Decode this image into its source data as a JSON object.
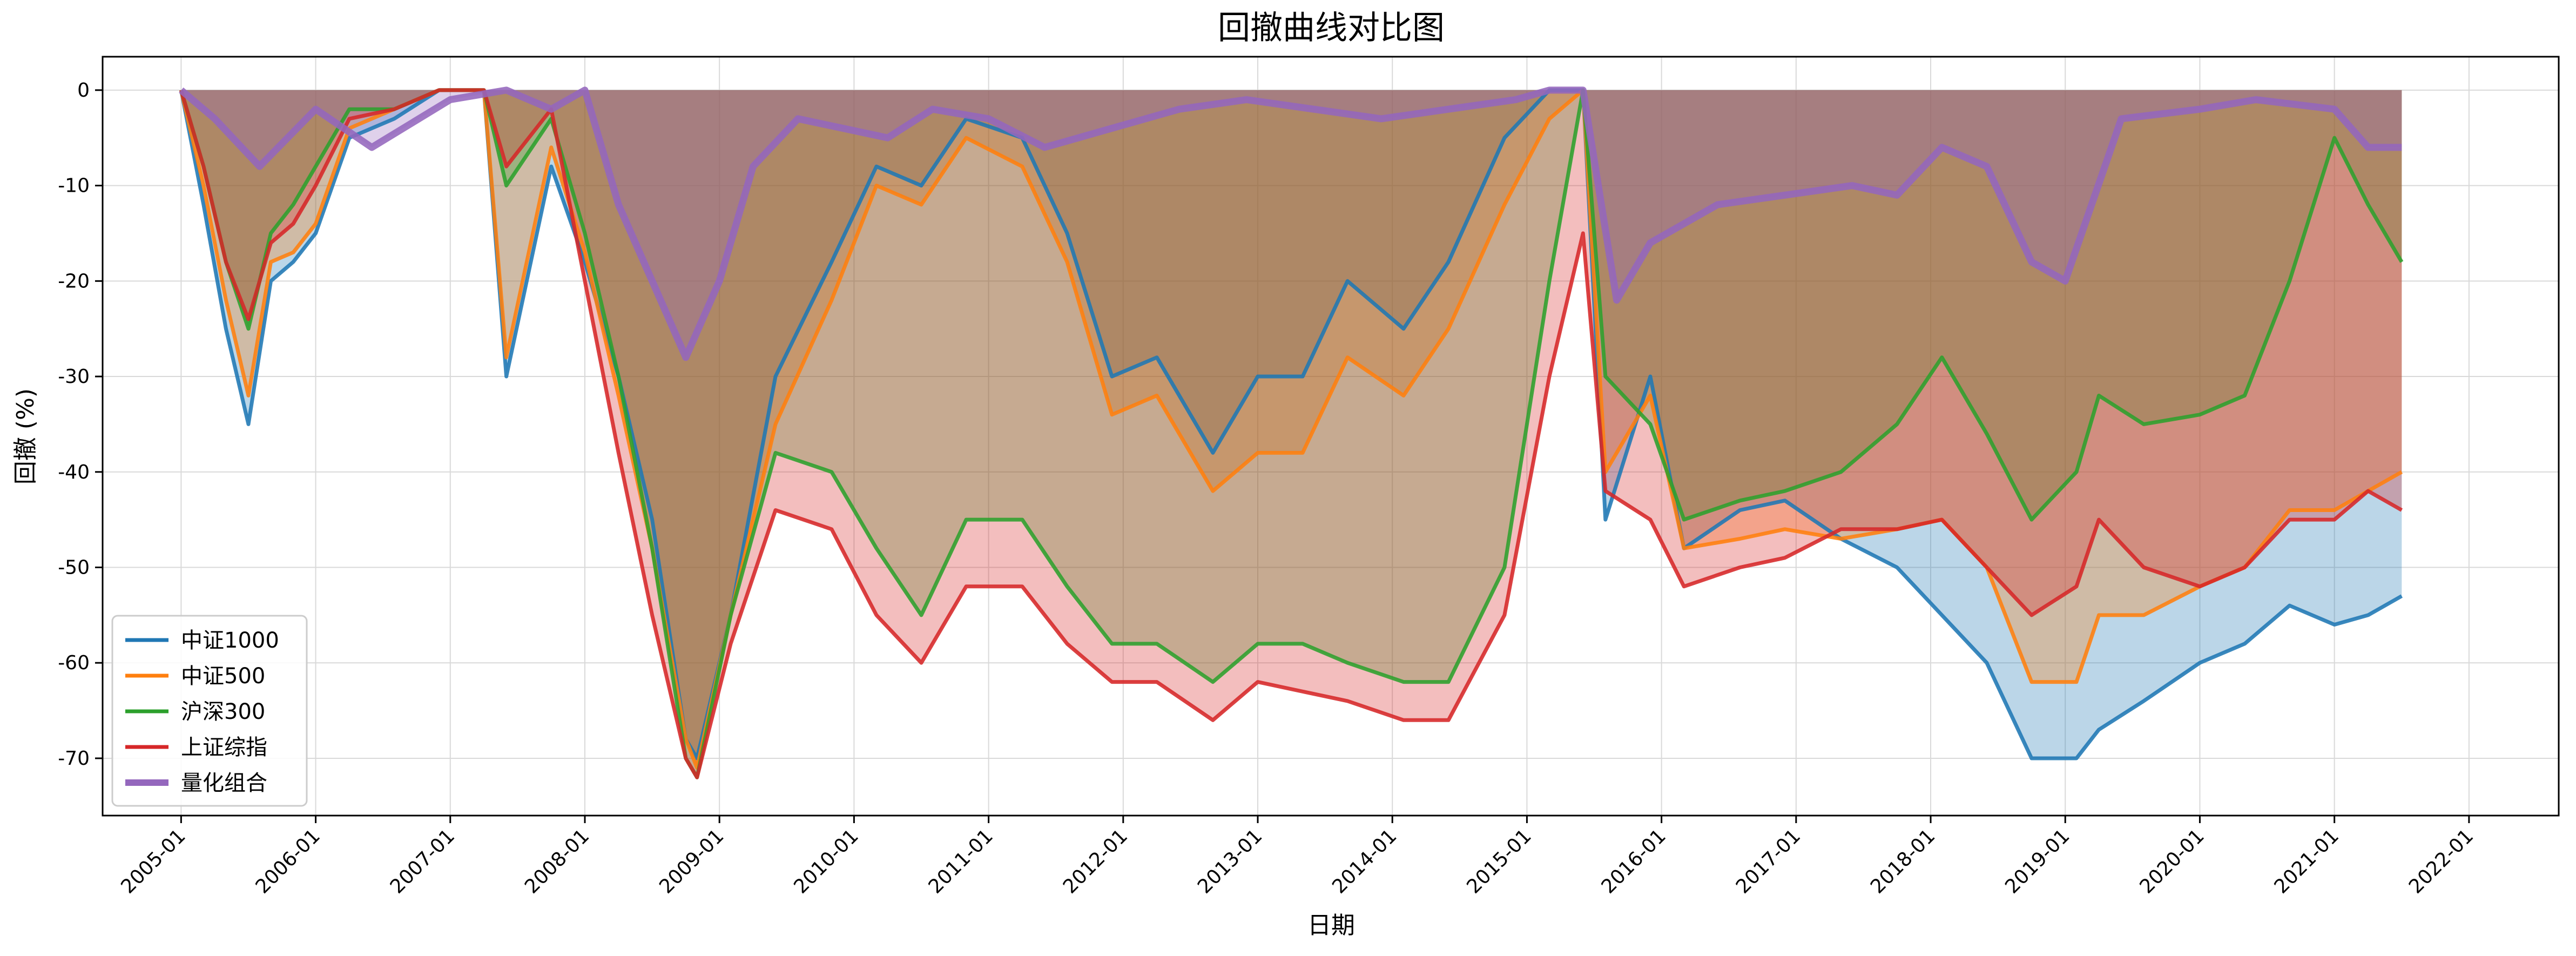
{
  "chart_data": {
    "type": "line",
    "title": "回撤曲线对比图",
    "xlabel": "日期",
    "ylabel": "回撤 (%)",
    "xlim": [
      "2004-06",
      "2022-09"
    ],
    "ylim": [
      -76,
      3.5
    ],
    "y_ticks": [
      0,
      -10,
      -20,
      -30,
      -40,
      -50,
      -60,
      -70
    ],
    "y_tick_labels": [
      "0",
      "-10",
      "-20",
      "-30",
      "-40",
      "-50",
      "-60",
      "-70"
    ],
    "x_ticks": [
      "2005-01",
      "2006-01",
      "2007-01",
      "2008-01",
      "2009-01",
      "2010-01",
      "2011-01",
      "2012-01",
      "2013-01",
      "2014-01",
      "2015-01",
      "2016-01",
      "2017-01",
      "2018-01",
      "2019-01",
      "2020-01",
      "2021-01",
      "2022-01"
    ],
    "grid": true,
    "legend_position": "lower-left",
    "series": [
      {
        "name": "中证1000",
        "color": "#1f77b4",
        "x": [
          "2005-01",
          "2005-03",
          "2005-05",
          "2005-07",
          "2005-09",
          "2005-11",
          "2006-01",
          "2006-04",
          "2006-08",
          "2006-12",
          "2007-04",
          "2007-06",
          "2007-10",
          "2008-01",
          "2008-04",
          "2008-07",
          "2008-10",
          "2008-11",
          "2009-02",
          "2009-06",
          "2009-11",
          "2010-03",
          "2010-07",
          "2010-11",
          "2011-04",
          "2011-08",
          "2011-12",
          "2012-04",
          "2012-09",
          "2013-01",
          "2013-05",
          "2013-09",
          "2014-02",
          "2014-06",
          "2014-11",
          "2015-03",
          "2015-06",
          "2015-08",
          "2015-12",
          "2016-03",
          "2016-08",
          "2016-12",
          "2017-05",
          "2017-10",
          "2018-02",
          "2018-06",
          "2018-10",
          "2019-02",
          "2019-04",
          "2019-08",
          "2020-01",
          "2020-05",
          "2020-09",
          "2021-01",
          "2021-04",
          "2021-07"
        ],
        "y": [
          0,
          -12,
          -25,
          -35,
          -20,
          -18,
          -15,
          -5,
          -3,
          0,
          0,
          -30,
          -8,
          -18,
          -30,
          -45,
          -68,
          -70,
          -55,
          -30,
          -18,
          -8,
          -10,
          -3,
          -5,
          -15,
          -30,
          -28,
          -38,
          -30,
          -30,
          -20,
          -25,
          -18,
          -5,
          0,
          0,
          -45,
          -30,
          -48,
          -44,
          -43,
          -47,
          -50,
          -55,
          -60,
          -70,
          -70,
          -67,
          -64,
          -60,
          -58,
          -54,
          -56,
          -55,
          -53
        ]
      },
      {
        "name": "中证500",
        "color": "#ff7f0e",
        "x": [
          "2005-01",
          "2005-03",
          "2005-05",
          "2005-07",
          "2005-09",
          "2005-11",
          "2006-01",
          "2006-04",
          "2006-08",
          "2006-12",
          "2007-04",
          "2007-06",
          "2007-10",
          "2008-01",
          "2008-04",
          "2008-07",
          "2008-10",
          "2008-11",
          "2009-02",
          "2009-06",
          "2009-11",
          "2010-03",
          "2010-07",
          "2010-11",
          "2011-04",
          "2011-08",
          "2011-12",
          "2012-04",
          "2012-09",
          "2013-01",
          "2013-05",
          "2013-09",
          "2014-02",
          "2014-06",
          "2014-11",
          "2015-03",
          "2015-06",
          "2015-08",
          "2015-12",
          "2016-03",
          "2016-08",
          "2016-12",
          "2017-05",
          "2017-10",
          "2018-02",
          "2018-06",
          "2018-10",
          "2019-02",
          "2019-04",
          "2019-08",
          "2020-01",
          "2020-05",
          "2020-09",
          "2021-01",
          "2021-04",
          "2021-07"
        ],
        "y": [
          0,
          -10,
          -22,
          -32,
          -18,
          -17,
          -14,
          -4,
          -2,
          0,
          0,
          -28,
          -6,
          -17,
          -32,
          -48,
          -68,
          -71,
          -55,
          -35,
          -22,
          -10,
          -12,
          -5,
          -8,
          -18,
          -34,
          -32,
          -42,
          -38,
          -38,
          -28,
          -32,
          -25,
          -12,
          -3,
          0,
          -40,
          -32,
          -48,
          -47,
          -46,
          -47,
          -46,
          -45,
          -50,
          -62,
          -62,
          -55,
          -55,
          -52,
          -50,
          -44,
          -44,
          -42,
          -40
        ]
      },
      {
        "name": "沪深300",
        "color": "#2ca02c",
        "x": [
          "2005-01",
          "2005-03",
          "2005-05",
          "2005-07",
          "2005-09",
          "2005-11",
          "2006-01",
          "2006-04",
          "2006-08",
          "2006-12",
          "2007-04",
          "2007-06",
          "2007-10",
          "2008-01",
          "2008-04",
          "2008-07",
          "2008-10",
          "2008-11",
          "2009-02",
          "2009-06",
          "2009-11",
          "2010-03",
          "2010-07",
          "2010-11",
          "2011-04",
          "2011-08",
          "2011-12",
          "2012-04",
          "2012-09",
          "2013-01",
          "2013-05",
          "2013-09",
          "2014-02",
          "2014-06",
          "2014-11",
          "2015-03",
          "2015-06",
          "2015-08",
          "2015-12",
          "2016-03",
          "2016-08",
          "2016-12",
          "2017-05",
          "2017-10",
          "2018-02",
          "2018-06",
          "2018-10",
          "2019-02",
          "2019-04",
          "2019-08",
          "2020-01",
          "2020-05",
          "2020-09",
          "2021-01",
          "2021-04",
          "2021-07"
        ],
        "y": [
          0,
          -8,
          -18,
          -25,
          -15,
          -12,
          -8,
          -2,
          -2,
          0,
          0,
          -10,
          -3,
          -15,
          -30,
          -48,
          -70,
          -72,
          -55,
          -38,
          -40,
          -48,
          -55,
          -45,
          -45,
          -52,
          -58,
          -58,
          -62,
          -58,
          -58,
          -60,
          -62,
          -62,
          -50,
          -20,
          0,
          -30,
          -35,
          -45,
          -43,
          -42,
          -40,
          -35,
          -28,
          -36,
          -45,
          -40,
          -32,
          -35,
          -34,
          -32,
          -20,
          -5,
          -12,
          -18
        ]
      },
      {
        "name": "上证综指",
        "color": "#d62728",
        "x": [
          "2005-01",
          "2005-03",
          "2005-05",
          "2005-07",
          "2005-09",
          "2005-11",
          "2006-01",
          "2006-04",
          "2006-08",
          "2006-12",
          "2007-04",
          "2007-06",
          "2007-10",
          "2008-01",
          "2008-04",
          "2008-07",
          "2008-10",
          "2008-11",
          "2009-02",
          "2009-06",
          "2009-11",
          "2010-03",
          "2010-07",
          "2010-11",
          "2011-04",
          "2011-08",
          "2011-12",
          "2012-04",
          "2012-09",
          "2013-01",
          "2013-05",
          "2013-09",
          "2014-02",
          "2014-06",
          "2014-11",
          "2015-03",
          "2015-06",
          "2015-08",
          "2015-12",
          "2016-03",
          "2016-08",
          "2016-12",
          "2017-05",
          "2017-10",
          "2018-02",
          "2018-06",
          "2018-10",
          "2019-02",
          "2019-04",
          "2019-08",
          "2020-01",
          "2020-05",
          "2020-09",
          "2021-01",
          "2021-04",
          "2021-07"
        ],
        "y": [
          0,
          -8,
          -18,
          -24,
          -16,
          -14,
          -10,
          -3,
          -2,
          0,
          0,
          -8,
          -2,
          -20,
          -38,
          -55,
          -70,
          -72,
          -58,
          -44,
          -46,
          -55,
          -60,
          -52,
          -52,
          -58,
          -62,
          -62,
          -66,
          -62,
          -63,
          -64,
          -66,
          -66,
          -55,
          -30,
          -15,
          -42,
          -45,
          -52,
          -50,
          -49,
          -46,
          -46,
          -45,
          -50,
          -55,
          -52,
          -45,
          -50,
          -52,
          -50,
          -45,
          -45,
          -42,
          -44
        ]
      },
      {
        "name": "量化组合",
        "color": "#9467bd",
        "x": [
          "2005-01",
          "2005-04",
          "2005-08",
          "2006-01",
          "2006-06",
          "2007-01",
          "2007-06",
          "2007-10",
          "2008-01",
          "2008-04",
          "2008-07",
          "2008-10",
          "2009-01",
          "2009-04",
          "2009-08",
          "2009-12",
          "2010-04",
          "2010-08",
          "2011-01",
          "2011-06",
          "2011-12",
          "2012-06",
          "2012-12",
          "2013-06",
          "2013-12",
          "2014-06",
          "2014-12",
          "2015-03",
          "2015-06",
          "2015-09",
          "2015-12",
          "2016-06",
          "2016-12",
          "2017-06",
          "2017-10",
          "2018-02",
          "2018-06",
          "2018-10",
          "2019-01",
          "2019-06",
          "2020-01",
          "2020-06",
          "2021-01",
          "2021-04",
          "2021-07"
        ],
        "y": [
          0,
          -3,
          -8,
          -2,
          -6,
          -1,
          0,
          -2,
          0,
          -12,
          -20,
          -28,
          -20,
          -8,
          -3,
          -4,
          -5,
          -2,
          -3,
          -6,
          -4,
          -2,
          -1,
          -2,
          -3,
          -2,
          -1,
          0,
          0,
          -22,
          -16,
          -12,
          -11,
          -10,
          -11,
          -6,
          -8,
          -18,
          -20,
          -3,
          -2,
          -1,
          -2,
          -6,
          -6
        ]
      }
    ]
  }
}
